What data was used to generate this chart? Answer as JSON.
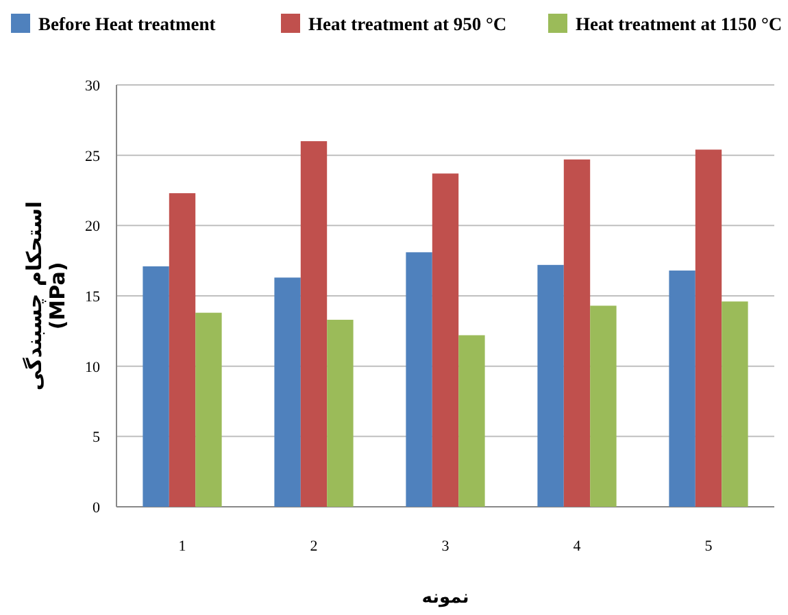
{
  "chart_data": {
    "type": "bar",
    "xlabel": "نمونه",
    "ylabel": "استحکام چسبندگی\n(MPa)",
    "categories": [
      "1",
      "2",
      "3",
      "4",
      "5"
    ],
    "series": [
      {
        "name": "Before Heat treatment",
        "color": "#4f81bd",
        "values": [
          17.1,
          16.3,
          18.1,
          17.2,
          16.8
        ]
      },
      {
        "name": "Heat treatment at 950 °C",
        "color": "#c0504d",
        "values": [
          22.3,
          26.0,
          23.7,
          24.7,
          25.4
        ]
      },
      {
        "name": "Heat treatment at 1150 °C",
        "color": "#9bbb59",
        "values": [
          13.8,
          13.3,
          12.2,
          14.3,
          14.6
        ]
      }
    ],
    "ylim": [
      0,
      30
    ],
    "yticks": [
      0,
      5,
      10,
      15,
      20,
      25,
      30
    ],
    "grid": "y",
    "legend": "top"
  }
}
